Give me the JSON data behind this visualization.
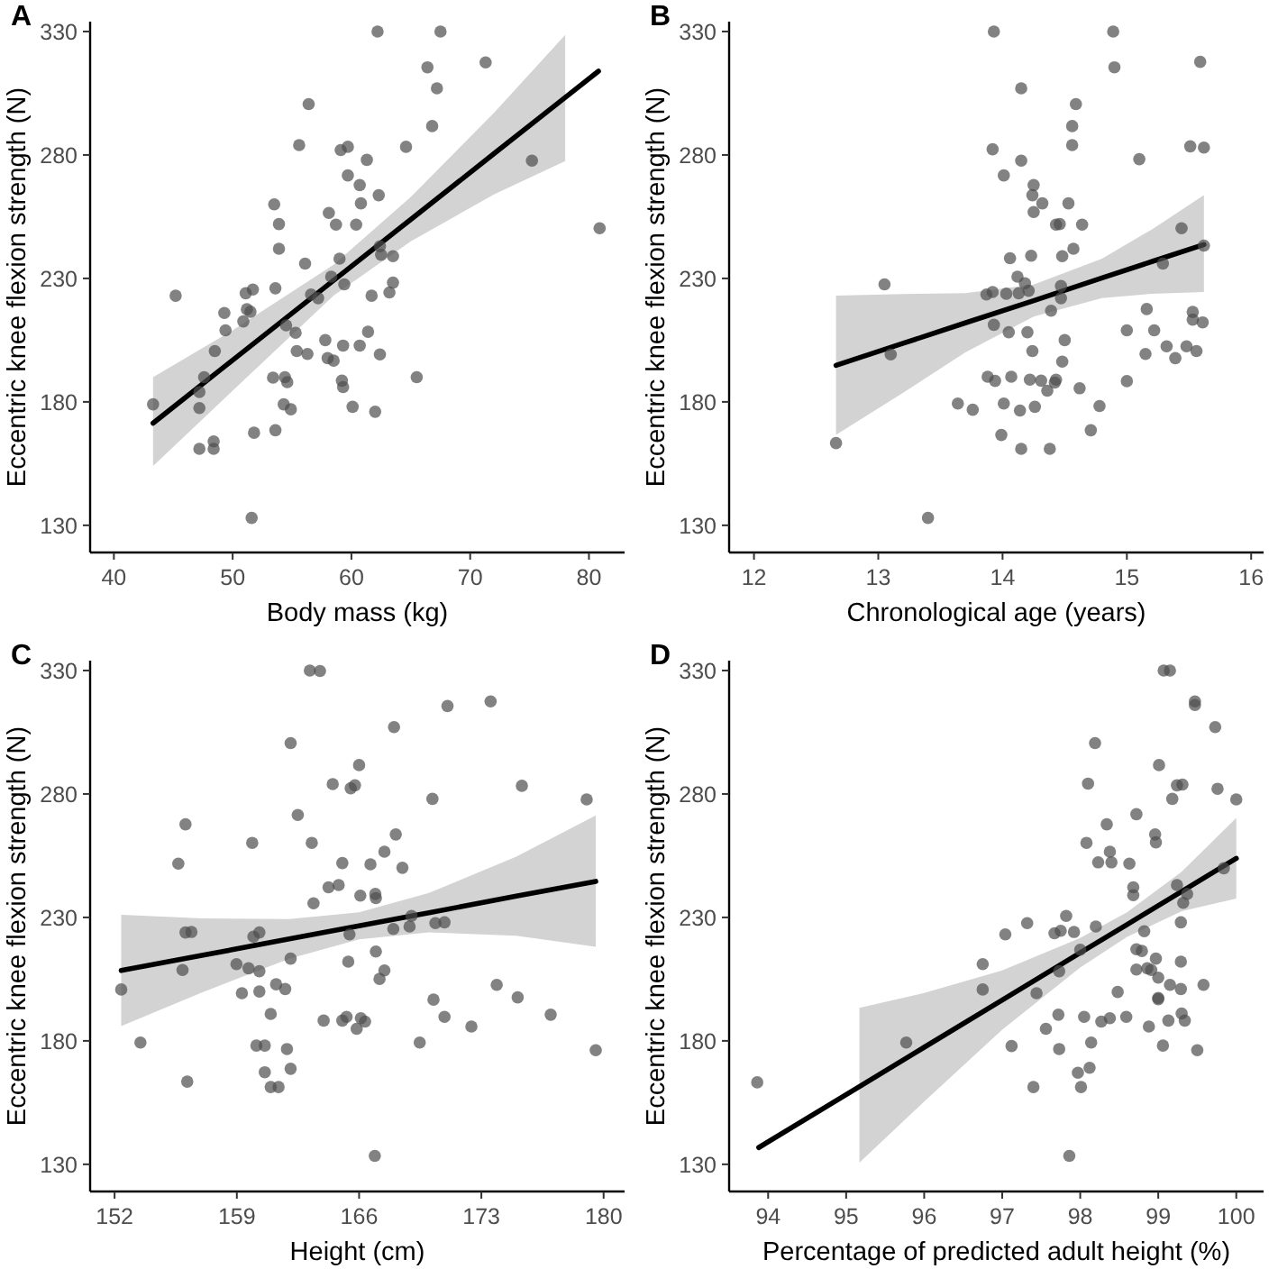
{
  "chart_data": [
    {
      "type": "scatter",
      "title": "A",
      "xlabel": "Body mass (kg)",
      "ylabel": "Eccentric knee flexion strength (N)",
      "xlim": [
        38,
        83
      ],
      "xticks": [
        40,
        50,
        60,
        70,
        80
      ],
      "ylim": [
        119,
        334
      ],
      "yticks": [
        130,
        180,
        230,
        280,
        330
      ],
      "grid": false,
      "marker": "circle",
      "series": [
        {
          "color": "#4d4d4d",
          "x": [
            43.3,
            45.2,
            47.2,
            47.2,
            47.2,
            47.6,
            48.4,
            48.4,
            48.5,
            49.4,
            49.3,
            50.9,
            51.1,
            51.2,
            51.5,
            51.7,
            51.6,
            51.8,
            53.5,
            53.6,
            53.4,
            53.6,
            53.9,
            53.9,
            54.3,
            54.4,
            54.5,
            54.6,
            54.9,
            55.3,
            55.4,
            55.6,
            56.1,
            56.3,
            56.4,
            56.6,
            57.2,
            57.8,
            58,
            58.1,
            58.3,
            58.5,
            58.7,
            59,
            59.1,
            59.2,
            59.3,
            59.3,
            59.4,
            59.7,
            59.7,
            60.1,
            60.4,
            60.7,
            60.8,
            60.7,
            61.3,
            61.4,
            61.7,
            62,
            62.2,
            62.3,
            62.5,
            62.4,
            62.4,
            63.2,
            63.5,
            63.5,
            64.6,
            65.5,
            66.4,
            66.8,
            67.2,
            67.5,
            71.3,
            75.2,
            80.9
          ],
          "values": [
            179,
            223,
            177.5,
            161,
            184,
            190,
            164,
            161,
            200.6,
            209,
            216,
            212.6,
            224,
            217.5,
            216.5,
            225.5,
            133,
            167.5,
            260,
            226,
            189.8,
            168.5,
            242,
            252,
            179,
            190,
            211,
            188,
            177,
            208,
            200.6,
            284,
            236,
            199.4,
            300.6,
            223.5,
            222,
            205,
            197.7,
            256.5,
            230.7,
            196.7,
            251.8,
            238,
            282,
            188.6,
            186,
            202.8,
            227.6,
            283.3,
            271.7,
            178,
            251.8,
            267.8,
            260.4,
            202.8,
            278,
            208.4,
            223,
            176,
            330,
            263.7,
            239.6,
            199.2,
            243,
            224.3,
            228.3,
            239,
            283.3,
            190,
            315.5,
            291.7,
            307,
            330,
            317.5,
            277.7,
            250.3
          ]
        },
        {
          "type": "line",
          "marker": "none",
          "color": "#000000",
          "x": [
            43.3,
            50,
            58.5,
            65,
            72,
            78,
            80.8
          ],
          "values": [
            171.4,
            196.9,
            229.2,
            253.9,
            280.5,
            303.3,
            313.9
          ],
          "lower": [
            154,
            184.5,
            223,
            245,
            264,
            277.5,
            null
          ],
          "upper": [
            190,
            209,
            235.5,
            263,
            297,
            328.6,
            null
          ]
        }
      ]
    },
    {
      "type": "scatter",
      "title": "B",
      "xlabel": "Chronological age (years)",
      "ylabel": "Eccentric knee flexion strength (N)",
      "xlim": [
        11.8,
        16.1
      ],
      "xticks": [
        12,
        13,
        14,
        15,
        16
      ],
      "ylim": [
        119,
        334
      ],
      "yticks": [
        130,
        180,
        230,
        280,
        330
      ],
      "grid": false,
      "marker": "circle",
      "series": [
        {
          "color": "#4d4d4d",
          "x": [
            12.66,
            13.05,
            13.1,
            13.4,
            13.64,
            13.76,
            13.87,
            13.88,
            13.92,
            13.92,
            13.93,
            13.93,
            13.94,
            13.99,
            14.01,
            14.01,
            14.03,
            14.05,
            14.06,
            14.07,
            14.12,
            14.13,
            14.14,
            14.15,
            14.15,
            14.15,
            14.18,
            14.2,
            14.21,
            14.22,
            14.23,
            14.24,
            14.25,
            14.24,
            14.25,
            14.26,
            14.32,
            14.31,
            14.36,
            14.38,
            14.39,
            14.42,
            14.43,
            14.46,
            14.43,
            14.47,
            14.47,
            14.48,
            14.48,
            14.5,
            14.53,
            14.56,
            14.56,
            14.57,
            14.59,
            14.62,
            14.64,
            14.71,
            14.78,
            14.89,
            14.9,
            15,
            15,
            15.1,
            15.15,
            15.16,
            15.22,
            15.29,
            15.32,
            15.39,
            15.44,
            15.48,
            15.51,
            15.53,
            15.53,
            15.56,
            15.59,
            15.61,
            15.62,
            15.62
          ],
          "values": [
            163.3,
            227.6,
            199.2,
            133,
            179.3,
            176.8,
            223.5,
            190.2,
            224.5,
            282.3,
            330,
            211.2,
            188.5,
            166.6,
            271.7,
            179.3,
            223.8,
            208.2,
            238.2,
            190.2,
            230.7,
            224,
            176.5,
            277.7,
            161,
            307,
            228,
            208.2,
            225,
            189,
            239.2,
            200.6,
            267.8,
            263.7,
            256.9,
            178,
            260.4,
            188.6,
            184.5,
            161,
            216.9,
            187.8,
            251.8,
            252,
            189,
            226.9,
            222,
            239,
            196.3,
            205,
            260.4,
            284,
            291.7,
            242,
            300.6,
            185.5,
            251.8,
            168.5,
            178.3,
            330,
            315.5,
            209,
            188.4,
            278.3,
            199.4,
            217.6,
            209,
            236,
            202.5,
            197.7,
            250.3,
            202.5,
            283.5,
            216.4,
            213.3,
            200.6,
            317.7,
            212.2,
            283,
            243.3
          ]
        },
        {
          "type": "line",
          "marker": "none",
          "color": "#000000",
          "x": [
            12.66,
            13.2,
            13.7,
            14.25,
            14.8,
            15.2,
            15.62
          ],
          "values": [
            194.8,
            203.7,
            212,
            221,
            230.2,
            236.8,
            243.7
          ],
          "lower": [
            166.6,
            183.7,
            200,
            214.5,
            222,
            223.8,
            224.5
          ],
          "upper": [
            223,
            223.7,
            224,
            227.5,
            238,
            249.8,
            263.7
          ]
        }
      ]
    },
    {
      "type": "scatter",
      "title": "C",
      "xlabel": "Height (cm)",
      "ylabel": "Eccentric knee flexion strength (N)",
      "xlim": [
        150.6,
        181.2
      ],
      "xticks": [
        152,
        159,
        166,
        173,
        180
      ],
      "ylim": [
        119,
        334
      ],
      "yticks": [
        130,
        180,
        230,
        280,
        330
      ],
      "grid": false,
      "marker": "circle",
      "series": [
        {
          "color": "#4d4d4d",
          "x": [
            152.38,
            153.48,
            155.65,
            155.89,
            156.06,
            156.16,
            156.06,
            156.4,
            158.98,
            159.29,
            159.67,
            159.88,
            159.95,
            160.12,
            160.29,
            160.29,
            160.29,
            160.6,
            160.6,
            160.94,
            160.94,
            161.25,
            161.39,
            161.77,
            161.87,
            162.08,
            162.08,
            162.08,
            162.49,
            163.18,
            163.29,
            163.39,
            163.76,
            163.97,
            164.25,
            164.49,
            164.83,
            165.04,
            165.04,
            165.28,
            165.45,
            165.38,
            165.52,
            165.76,
            165.86,
            166,
            166.07,
            166.1,
            166.34,
            166.65,
            166.9,
            166.93,
            166.96,
            166.96,
            167.17,
            167.45,
            167.45,
            167.96,
            168,
            168.1,
            168.48,
            168.89,
            169,
            169.47,
            170.2,
            170.26,
            170.37,
            170.89,
            170.89,
            171.06,
            172.43,
            173.53,
            173.88,
            175.32,
            175.08,
            176.97,
            179.03,
            179.55
          ],
          "values": [
            200.8,
            179.3,
            251.8,
            208.7,
            267.7,
            163.5,
            223.9,
            224.1,
            211.1,
            199.3,
            209.4,
            260.2,
            222.2,
            178.1,
            208.2,
            223.9,
            200,
            178.1,
            167.3,
            190.9,
            161.3,
            202.9,
            161.3,
            201,
            176.7,
            213.3,
            168.7,
            300.6,
            271.5,
            330,
            260.2,
            235.7,
            329.8,
            188.2,
            242.2,
            284,
            243.1,
            252,
            188.2,
            189.7,
            223.1,
            212.1,
            282.3,
            283.5,
            184.9,
            291.7,
            238.8,
            189.2,
            187.8,
            251.5,
            133.4,
            239.5,
            216.2,
            237.8,
            205.1,
            208.5,
            256.6,
            225.3,
            307.1,
            263.6,
            250.1,
            226.3,
            230.6,
            179.3,
            278,
            196.7,
            227.7,
            228,
            189.7,
            315.6,
            185.8,
            317.5,
            202.7,
            283.3,
            197.6,
            190.6,
            277.8,
            176.2
          ]
        },
        {
          "type": "line",
          "marker": "none",
          "color": "#000000",
          "x": [
            152.38,
            157,
            162,
            166,
            170,
            175,
            179.55
          ],
          "values": [
            208.5,
            214.6,
            221.3,
            226.6,
            231.9,
            238.6,
            244.6
          ],
          "lower": [
            186,
            199.6,
            213.3,
            221.1,
            223.9,
            222.6,
            218.1
          ],
          "upper": [
            231.1,
            229.6,
            229.3,
            232.1,
            239.9,
            254.6,
            271.3
          ]
        }
      ]
    },
    {
      "type": "scatter",
      "title": "D",
      "xlabel": "Percentage of predicted adult height (%)",
      "ylabel": "Eccentric knee flexion strength (N)",
      "xlim": [
        93.5,
        100.35
      ],
      "xticks": [
        94,
        95,
        96,
        97,
        98,
        99,
        100
      ],
      "ylim": [
        119,
        334
      ],
      "yticks": [
        130,
        180,
        230,
        280,
        330
      ],
      "grid": false,
      "marker": "circle",
      "series": [
        {
          "color": "#4d4d4d",
          "x": [
            93.86,
            95.77,
            96.75,
            96.75,
            97.04,
            97.12,
            97.32,
            97.4,
            97.44,
            97.56,
            97.67,
            97.72,
            97.73,
            97.73,
            97.75,
            97.82,
            97.86,
            97.92,
            97.97,
            98,
            98.01,
            98.05,
            98.08,
            98.1,
            98.12,
            98.14,
            98.19,
            98.2,
            98.23,
            98.27,
            98.34,
            98.38,
            98.38,
            98.4,
            98.48,
            98.59,
            98.63,
            98.68,
            98.68,
            98.72,
            98.72,
            98.72,
            98.79,
            98.82,
            98.88,
            98.86,
            98.91,
            98.96,
            98.97,
            98.97,
            99,
            99,
            99,
            99.01,
            99.06,
            99.07,
            99.15,
            99.13,
            99.15,
            99.18,
            99.24,
            99.24,
            99.29,
            99.29,
            99.29,
            99.3,
            99.31,
            99.32,
            99.34,
            99.37,
            99.47,
            99.47,
            99.5,
            99.58,
            99.73,
            99.76,
            99.84,
            100
          ],
          "values": [
            163.2,
            179.3,
            200.8,
            211.1,
            223.1,
            177.9,
            227.7,
            161.3,
            199.3,
            184.9,
            223.6,
            190.6,
            176.7,
            208.2,
            224.6,
            230.6,
            133.4,
            224.1,
            167.1,
            216.9,
            161.3,
            189.7,
            260.2,
            284.2,
            169.1,
            179.3,
            300.6,
            226.3,
            252.3,
            187.8,
            267.7,
            256.6,
            189.2,
            252.3,
            199.8,
            189.7,
            251.8,
            242.2,
            239,
            217.1,
            271.8,
            208.9,
            216.4,
            224.4,
            185.8,
            209.4,
            208.7,
            263.6,
            260.4,
            213.3,
            205.6,
            197.4,
            196.9,
            291.7,
            178.1,
            330,
            330,
            188.2,
            202.7,
            278,
            243.1,
            283.5,
            212.1,
            201,
            228,
            191.1,
            283.8,
            235.9,
            188.2,
            239.5,
            317.5,
            316,
            176.2,
            202.7,
            307.1,
            282.1,
            249.9,
            277.8
          ]
        },
        {
          "type": "line",
          "marker": "none",
          "color": "#000000",
          "x": [
            93.88,
            95.17,
            96,
            97,
            98,
            98.6,
            99.3,
            100
          ],
          "values": [
            136.8,
            161.5,
            177.4,
            196.5,
            215.7,
            227.1,
            240.5,
            253.9
          ],
          "lower": [
            null,
            130.7,
            155.4,
            184.5,
            209.7,
            222.1,
            232.5,
            237.6
          ],
          "upper": [
            null,
            193.4,
            199.4,
            208.5,
            221.7,
            232.1,
            248.5,
            270.3
          ]
        }
      ]
    }
  ]
}
